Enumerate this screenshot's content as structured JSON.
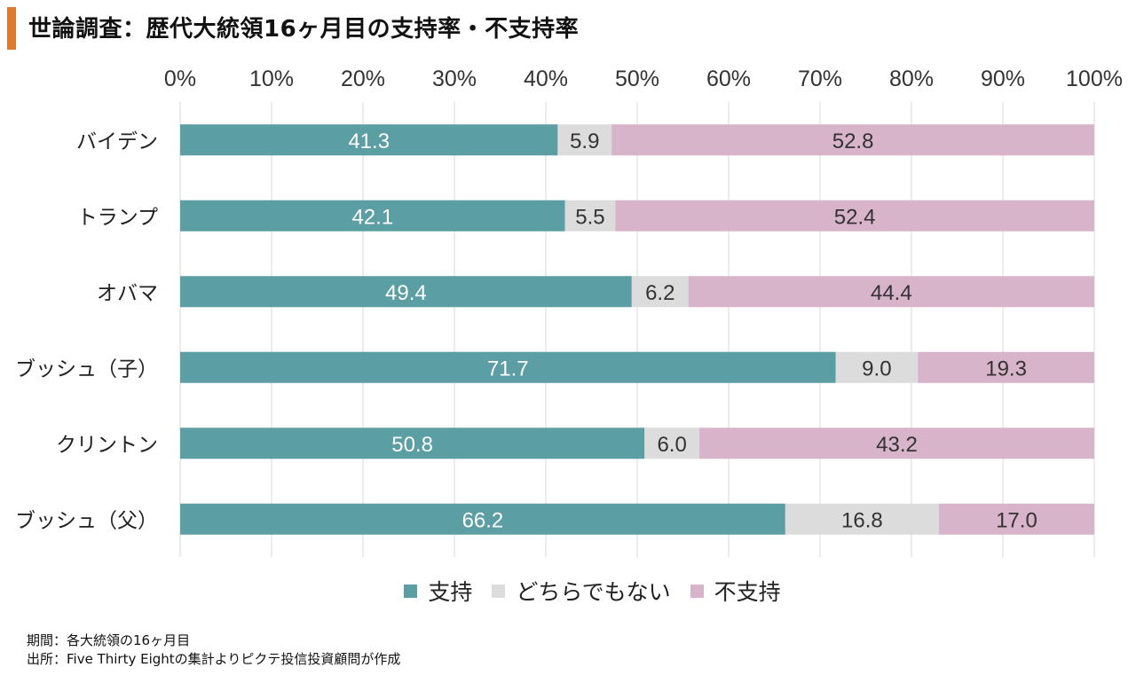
{
  "header": {
    "title": "世論調査：歴代大統領16ヶ月目の支持率・不支持率"
  },
  "colors": {
    "accent": "#e07a2e",
    "support": "#5b9ea4",
    "neutral": "#dcdcdc",
    "oppose": "#d7b4c9",
    "grid": "#d9d9d9"
  },
  "chart_data": {
    "type": "bar",
    "orientation": "horizontal",
    "stacked": true,
    "title": "世論調査：歴代大統領16ヶ月目の支持率・不支持率",
    "categories": [
      "バイデン",
      "トランプ",
      "オバマ",
      "ブッシュ（子）",
      "クリントン",
      "ブッシュ（父）"
    ],
    "series": [
      {
        "name": "支持",
        "values": [
          41.3,
          42.1,
          49.4,
          71.7,
          50.8,
          66.2
        ]
      },
      {
        "name": "どちらでもない",
        "values": [
          5.9,
          5.5,
          6.2,
          9.0,
          6.0,
          16.8
        ]
      },
      {
        "name": "不支持",
        "values": [
          52.8,
          52.4,
          44.4,
          19.3,
          43.2,
          17.0
        ]
      }
    ],
    "value_labels": [
      [
        "41.3",
        "5.9",
        "52.8"
      ],
      [
        "42.1",
        "5.5",
        "52.4"
      ],
      [
        "49.4",
        "6.2",
        "44.4"
      ],
      [
        "71.7",
        "9.0",
        "19.3"
      ],
      [
        "50.8",
        "6.0",
        "43.2"
      ],
      [
        "66.2",
        "16.8",
        "17.0"
      ]
    ],
    "x_ticks": [
      "0%",
      "10%",
      "20%",
      "30%",
      "40%",
      "50%",
      "60%",
      "70%",
      "80%",
      "90%",
      "100%"
    ],
    "xlim": [
      0,
      100
    ],
    "x_axis_position": "top",
    "grid": true,
    "legend_position": "bottom"
  },
  "legend": {
    "items": [
      {
        "label": "支持"
      },
      {
        "label": "どちらでもない"
      },
      {
        "label": "不支持"
      }
    ]
  },
  "notes": {
    "period": "期間：各大統領の16ヶ月目",
    "source": "出所：Five Thirty Eightの集計よりピクテ投信投資顧問が作成"
  }
}
